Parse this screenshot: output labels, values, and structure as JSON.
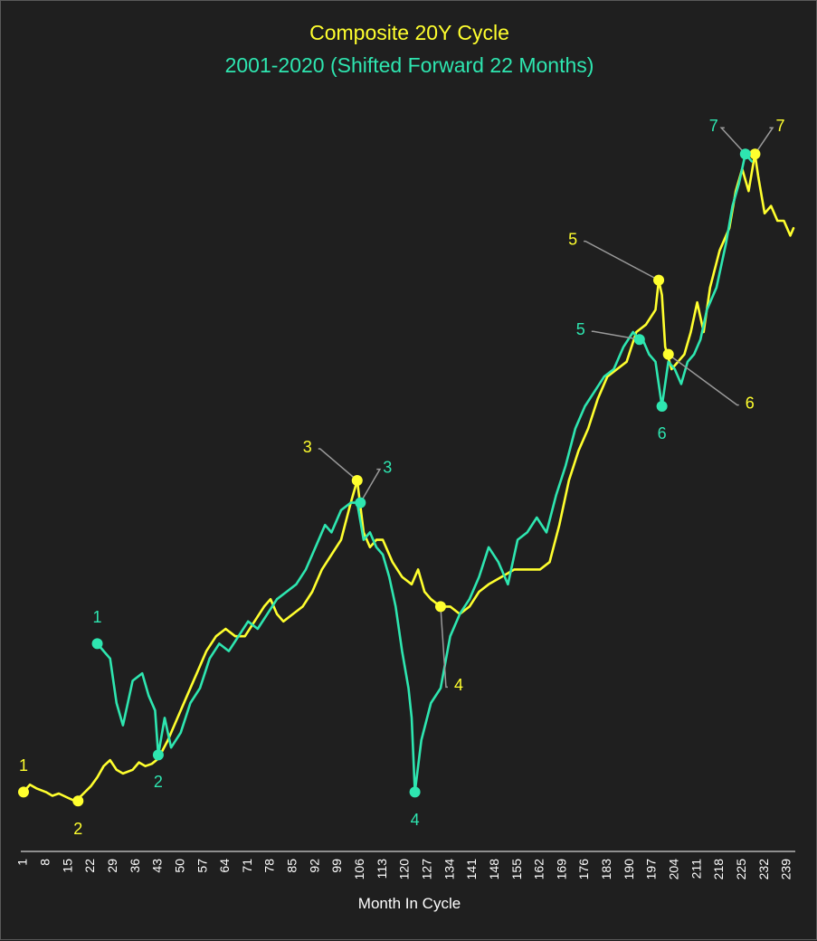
{
  "colors": {
    "background": "#1f1f1f",
    "yellow": "#ffff2e",
    "teal": "#2ee6b0",
    "axis": "#ffffff",
    "leader": "#9a9a9a"
  },
  "chart_data": {
    "type": "line",
    "title": "Composite 20Y Cycle",
    "subtitle": "2001-2020 (Shifted Forward 22 Months)",
    "xlabel": "Month In Cycle",
    "ylabel": "",
    "grid": false,
    "xlim": [
      1,
      241
    ],
    "ylim": [
      0,
      100
    ],
    "x_ticks": [
      1,
      8,
      15,
      22,
      29,
      36,
      43,
      50,
      57,
      64,
      71,
      78,
      85,
      92,
      99,
      106,
      113,
      120,
      127,
      134,
      141,
      148,
      155,
      162,
      169,
      176,
      183,
      190,
      197,
      204,
      211,
      218,
      225,
      232,
      239
    ],
    "series": [
      {
        "color": "yellow",
        "points": [
          [
            1,
            8
          ],
          [
            3,
            9
          ],
          [
            5,
            8.5
          ],
          [
            8,
            8
          ],
          [
            10,
            7.5
          ],
          [
            12,
            7.8
          ],
          [
            15,
            7.2
          ],
          [
            17,
            6.8
          ],
          [
            19,
            7.5
          ],
          [
            22,
            8.8
          ],
          [
            24,
            10
          ],
          [
            26,
            11.5
          ],
          [
            28,
            12.3
          ],
          [
            30,
            11
          ],
          [
            32,
            10.5
          ],
          [
            35,
            11
          ],
          [
            37,
            12
          ],
          [
            39,
            11.5
          ],
          [
            41,
            11.8
          ],
          [
            43,
            12.5
          ],
          [
            46,
            15
          ],
          [
            49,
            18
          ],
          [
            52,
            21
          ],
          [
            55,
            24
          ],
          [
            58,
            27
          ],
          [
            61,
            29
          ],
          [
            64,
            30
          ],
          [
            67,
            29
          ],
          [
            70,
            29
          ],
          [
            73,
            31
          ],
          [
            76,
            33
          ],
          [
            78,
            34
          ],
          [
            80,
            32
          ],
          [
            82,
            31
          ],
          [
            85,
            32
          ],
          [
            88,
            33
          ],
          [
            91,
            35
          ],
          [
            94,
            38
          ],
          [
            97,
            40
          ],
          [
            100,
            42
          ],
          [
            103,
            47
          ],
          [
            105,
            50
          ],
          [
            107,
            43
          ],
          [
            109,
            41
          ],
          [
            111,
            42
          ],
          [
            113,
            42
          ],
          [
            116,
            39
          ],
          [
            119,
            37
          ],
          [
            122,
            36
          ],
          [
            124,
            38
          ],
          [
            126,
            35
          ],
          [
            128,
            34
          ],
          [
            131,
            33
          ],
          [
            134,
            33
          ],
          [
            137,
            32
          ],
          [
            140,
            33
          ],
          [
            143,
            35
          ],
          [
            146,
            36
          ],
          [
            150,
            37
          ],
          [
            154,
            38
          ],
          [
            158,
            38
          ],
          [
            162,
            38
          ],
          [
            165,
            39
          ],
          [
            168,
            44
          ],
          [
            171,
            50
          ],
          [
            174,
            54
          ],
          [
            177,
            57
          ],
          [
            180,
            61
          ],
          [
            183,
            64
          ],
          [
            186,
            65
          ],
          [
            189,
            66
          ],
          [
            192,
            70
          ],
          [
            195,
            71
          ],
          [
            198,
            73
          ],
          [
            199,
            77
          ],
          [
            200,
            75
          ],
          [
            201,
            68
          ],
          [
            203,
            65
          ],
          [
            205,
            66
          ],
          [
            207,
            67
          ],
          [
            209,
            70
          ],
          [
            211,
            74
          ],
          [
            213,
            70
          ],
          [
            215,
            76
          ],
          [
            218,
            81
          ],
          [
            221,
            84
          ],
          [
            223,
            89
          ],
          [
            225,
            92
          ],
          [
            227,
            89
          ],
          [
            229,
            94
          ],
          [
            230,
            91
          ],
          [
            232,
            86
          ],
          [
            234,
            87
          ],
          [
            236,
            85
          ],
          [
            238,
            85
          ],
          [
            240,
            83
          ],
          [
            241,
            84
          ]
        ]
      },
      {
        "color": "teal",
        "points": [
          [
            24,
            28
          ],
          [
            26,
            27
          ],
          [
            28,
            26
          ],
          [
            30,
            20
          ],
          [
            32,
            17
          ],
          [
            35,
            23
          ],
          [
            38,
            24
          ],
          [
            40,
            21
          ],
          [
            42,
            19
          ],
          [
            43,
            13
          ],
          [
            45,
            18
          ],
          [
            47,
            14
          ],
          [
            50,
            16
          ],
          [
            53,
            20
          ],
          [
            56,
            22
          ],
          [
            59,
            26
          ],
          [
            62,
            28
          ],
          [
            65,
            27
          ],
          [
            68,
            29
          ],
          [
            71,
            31
          ],
          [
            74,
            30
          ],
          [
            77,
            32
          ],
          [
            80,
            34
          ],
          [
            83,
            35
          ],
          [
            86,
            36
          ],
          [
            89,
            38
          ],
          [
            92,
            41
          ],
          [
            95,
            44
          ],
          [
            97,
            43
          ],
          [
            100,
            46
          ],
          [
            103,
            47
          ],
          [
            105,
            47
          ],
          [
            107,
            42
          ],
          [
            109,
            43
          ],
          [
            111,
            41
          ],
          [
            113,
            40
          ],
          [
            115,
            37
          ],
          [
            117,
            33
          ],
          [
            119,
            27
          ],
          [
            121,
            22
          ],
          [
            122,
            18
          ],
          [
            123,
            8
          ],
          [
            125,
            15
          ],
          [
            128,
            20
          ],
          [
            131,
            22
          ],
          [
            134,
            29
          ],
          [
            137,
            32
          ],
          [
            140,
            34
          ],
          [
            143,
            37
          ],
          [
            146,
            41
          ],
          [
            149,
            39
          ],
          [
            152,
            36
          ],
          [
            155,
            42
          ],
          [
            158,
            43
          ],
          [
            161,
            45
          ],
          [
            164,
            43
          ],
          [
            167,
            48
          ],
          [
            170,
            52
          ],
          [
            173,
            57
          ],
          [
            176,
            60
          ],
          [
            179,
            62
          ],
          [
            182,
            64
          ],
          [
            185,
            65
          ],
          [
            188,
            68
          ],
          [
            191,
            70
          ],
          [
            193,
            69
          ],
          [
            194,
            69
          ],
          [
            196,
            67
          ],
          [
            198,
            66
          ],
          [
            200,
            60
          ],
          [
            202,
            66
          ],
          [
            204,
            65
          ],
          [
            206,
            63
          ],
          [
            208,
            66
          ],
          [
            210,
            67
          ],
          [
            212,
            69
          ],
          [
            214,
            73
          ],
          [
            217,
            76
          ],
          [
            220,
            82
          ],
          [
            222,
            87
          ],
          [
            224,
            90
          ],
          [
            226,
            94
          ],
          [
            228,
            93
          ]
        ]
      }
    ],
    "annotations": [
      {
        "label": "1",
        "color": "yellow",
        "x": 1,
        "y": 8
      },
      {
        "label": "2",
        "color": "yellow",
        "x": 18,
        "y": 6.8
      },
      {
        "label": "3",
        "color": "yellow",
        "x": 105,
        "y": 50
      },
      {
        "label": "4",
        "color": "yellow",
        "x": 131,
        "y": 33
      },
      {
        "label": "5",
        "color": "yellow",
        "x": 199,
        "y": 77
      },
      {
        "label": "6",
        "color": "yellow",
        "x": 202,
        "y": 67
      },
      {
        "label": "7",
        "color": "yellow",
        "x": 229,
        "y": 94
      },
      {
        "label": "1",
        "color": "teal",
        "x": 24,
        "y": 28
      },
      {
        "label": "2",
        "color": "teal",
        "x": 43,
        "y": 13
      },
      {
        "label": "3",
        "color": "teal",
        "x": 106,
        "y": 47
      },
      {
        "label": "4",
        "color": "teal",
        "x": 123,
        "y": 8
      },
      {
        "label": "5",
        "color": "teal",
        "x": 193,
        "y": 69
      },
      {
        "label": "6",
        "color": "teal",
        "x": 200,
        "y": 60
      },
      {
        "label": "7",
        "color": "teal",
        "x": 226,
        "y": 94
      }
    ]
  }
}
